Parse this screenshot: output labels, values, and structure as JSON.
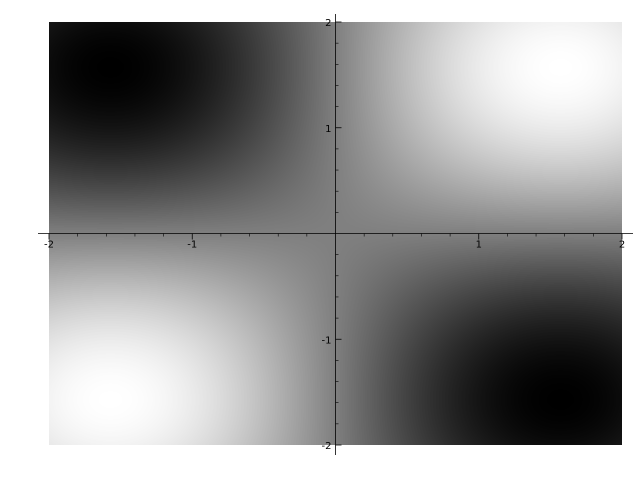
{
  "chart_data": {
    "type": "heatmap",
    "title": "",
    "xlabel": "",
    "ylabel": "",
    "xlim": [
      -2,
      2
    ],
    "ylim": [
      -2,
      2
    ],
    "colormap": "gray",
    "field": "sin(x)*sin(y)",
    "grid": false,
    "axes": "centered-through-origin",
    "x_ticks": [
      {
        "value": -2,
        "label": "-2"
      },
      {
        "value": -1,
        "label": "-1"
      },
      {
        "value": 1,
        "label": "1"
      },
      {
        "value": 2,
        "label": "2"
      }
    ],
    "y_ticks": [
      {
        "value": 2,
        "label": "2"
      },
      {
        "value": 1,
        "label": "1"
      },
      {
        "value": -1,
        "label": "-1"
      },
      {
        "value": -2,
        "label": "-2"
      }
    ],
    "colors": {
      "low": "#000000",
      "high": "#ffffff",
      "axis": "#000000",
      "background": "#ffffff"
    }
  }
}
